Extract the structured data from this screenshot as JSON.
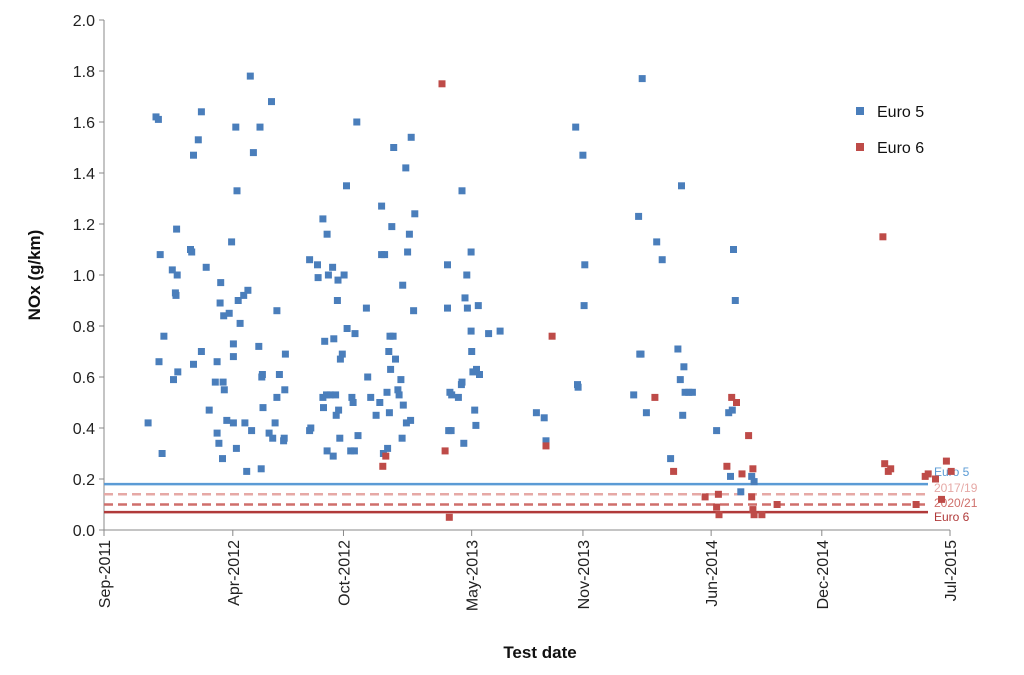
{
  "chart_data": {
    "type": "scatter",
    "xlabel": "Test date",
    "ylabel": "NOx (g/km)",
    "x_ticks": [
      "Sep-2011",
      "Apr-2012",
      "Oct-2012",
      "May-2013",
      "Nov-2013",
      "Jun-2014",
      "Dec-2014",
      "Jul-2015"
    ],
    "x_range": [
      "2011-09-01",
      "2015-07-01"
    ],
    "y_ticks": [
      "0.0",
      "0.2",
      "0.4",
      "0.6",
      "0.8",
      "1.0",
      "1.2",
      "1.4",
      "1.6",
      "1.8",
      "2.0"
    ],
    "ylim": [
      0,
      2.0
    ],
    "grid": false,
    "legend": "top-right",
    "colors": {
      "euro5": "#4a7ebb",
      "euro6": "#be4b48",
      "euro5_line": "#5b9bd5",
      "euro6_line": "#b03a3a",
      "limit_2017": "#e6a9a6",
      "limit_2020": "#cf6f6b"
    },
    "series": [
      {
        "name": "Euro 5",
        "color": "#4a7ebb",
        "points": [
          [
            "2011-11-13",
            0.42
          ],
          [
            "2011-11-26",
            1.62
          ],
          [
            "2011-11-30",
            1.61
          ],
          [
            "2011-12-03",
            1.08
          ],
          [
            "2011-12-06",
            0.3
          ],
          [
            "2011-12-09",
            0.76
          ],
          [
            "2011-12-01",
            0.66
          ],
          [
            "2011-12-23",
            1.02
          ],
          [
            "2011-12-25",
            0.59
          ],
          [
            "2011-12-28",
            0.93
          ],
          [
            "2011-12-29",
            0.92
          ],
          [
            "2011-12-30",
            1.18
          ],
          [
            "2011-12-31",
            1.0
          ],
          [
            "2012-01-01",
            0.62
          ],
          [
            "2012-01-22",
            1.1
          ],
          [
            "2012-01-24",
            1.09
          ],
          [
            "2012-01-27",
            0.65
          ],
          [
            "2012-01-27",
            1.47
          ],
          [
            "2012-02-04",
            1.53
          ],
          [
            "2012-02-09",
            0.7
          ],
          [
            "2012-02-09",
            1.64
          ],
          [
            "2012-02-17",
            1.03
          ],
          [
            "2012-02-22",
            0.47
          ],
          [
            "2012-03-03",
            0.58
          ],
          [
            "2012-03-06",
            0.66
          ],
          [
            "2012-03-06",
            0.38
          ],
          [
            "2012-03-09",
            0.34
          ],
          [
            "2012-03-11",
            0.89
          ],
          [
            "2012-03-12",
            0.97
          ],
          [
            "2012-03-15",
            0.28
          ],
          [
            "2012-03-16",
            0.58
          ],
          [
            "2012-03-18",
            0.55
          ],
          [
            "2012-03-17",
            0.84
          ],
          [
            "2012-03-22",
            0.43
          ],
          [
            "2012-03-26",
            0.85
          ],
          [
            "2012-03-30",
            1.13
          ],
          [
            "2012-04-02",
            0.73
          ],
          [
            "2012-04-02",
            0.68
          ],
          [
            "2012-04-02",
            0.42
          ],
          [
            "2012-04-06",
            1.58
          ],
          [
            "2012-04-07",
            0.32
          ],
          [
            "2012-04-08",
            1.33
          ],
          [
            "2012-04-10",
            0.9
          ],
          [
            "2012-04-13",
            0.81
          ],
          [
            "2012-04-19",
            0.92
          ],
          [
            "2012-04-21",
            0.42
          ],
          [
            "2012-04-24",
            0.23
          ],
          [
            "2012-04-26",
            0.94
          ],
          [
            "2012-04-30",
            1.78
          ],
          [
            "2012-05-02",
            0.39
          ],
          [
            "2012-05-05",
            1.48
          ],
          [
            "2012-05-14",
            0.72
          ],
          [
            "2012-05-16",
            1.58
          ],
          [
            "2012-05-18",
            0.24
          ],
          [
            "2012-05-20",
            0.61
          ],
          [
            "2012-05-19",
            0.6
          ],
          [
            "2012-05-21",
            0.48
          ],
          [
            "2012-05-31",
            0.38
          ],
          [
            "2012-06-04",
            1.68
          ],
          [
            "2012-06-06",
            0.36
          ],
          [
            "2012-06-10",
            0.42
          ],
          [
            "2012-06-13",
            0.86
          ],
          [
            "2012-06-13",
            0.52
          ],
          [
            "2012-06-17",
            0.61
          ],
          [
            "2012-06-25",
            0.36
          ],
          [
            "2012-06-24",
            0.35
          ],
          [
            "2012-06-26",
            0.55
          ],
          [
            "2012-06-27",
            0.69
          ],
          [
            "2012-08-06",
            1.06
          ],
          [
            "2012-08-08",
            0.4
          ],
          [
            "2012-08-06",
            0.39
          ],
          [
            "2012-08-19",
            1.04
          ],
          [
            "2012-08-20",
            0.99
          ],
          [
            "2012-08-28",
            1.22
          ],
          [
            "2012-08-28",
            0.52
          ],
          [
            "2012-08-29",
            0.48
          ],
          [
            "2012-08-31",
            0.74
          ],
          [
            "2012-09-03",
            0.53
          ],
          [
            "2012-09-04",
            0.31
          ],
          [
            "2012-09-04",
            1.16
          ],
          [
            "2012-09-06",
            1.0
          ],
          [
            "2012-09-09",
            0.53
          ],
          [
            "2012-09-13",
            1.03
          ],
          [
            "2012-09-14",
            0.29
          ],
          [
            "2012-09-15",
            0.75
          ],
          [
            "2012-09-18",
            0.53
          ],
          [
            "2012-09-19",
            0.45
          ],
          [
            "2012-09-21",
            0.9
          ],
          [
            "2012-09-22",
            0.98
          ],
          [
            "2012-09-23",
            0.47
          ],
          [
            "2012-09-25",
            0.36
          ],
          [
            "2012-09-26",
            0.67
          ],
          [
            "2012-09-29",
            0.69
          ],
          [
            "2012-10-02",
            1.0
          ],
          [
            "2012-10-06",
            1.35
          ],
          [
            "2012-10-07",
            0.79
          ],
          [
            "2012-10-13",
            0.31
          ],
          [
            "2012-10-15",
            0.52
          ],
          [
            "2012-10-17",
            0.5
          ],
          [
            "2012-10-19",
            0.31
          ],
          [
            "2012-10-20",
            0.77
          ],
          [
            "2012-10-23",
            1.6
          ],
          [
            "2012-10-25",
            0.37
          ],
          [
            "2012-11-08",
            0.87
          ],
          [
            "2012-11-10",
            0.6
          ],
          [
            "2012-11-15",
            0.52
          ],
          [
            "2012-11-24",
            0.45
          ],
          [
            "2012-11-30",
            0.5
          ],
          [
            "2012-12-03",
            1.08
          ],
          [
            "2012-12-03",
            1.27
          ],
          [
            "2012-12-06",
            0.3
          ],
          [
            "2012-12-08",
            1.08
          ],
          [
            "2012-12-12",
            0.54
          ],
          [
            "2012-12-13",
            0.32
          ],
          [
            "2012-12-15",
            0.7
          ],
          [
            "2012-12-16",
            0.46
          ],
          [
            "2012-12-17",
            0.76
          ],
          [
            "2012-12-18",
            0.63
          ],
          [
            "2012-12-20",
            1.19
          ],
          [
            "2012-12-22",
            0.76
          ],
          [
            "2012-12-23",
            1.5
          ],
          [
            "2012-12-26",
            0.67
          ],
          [
            "2012-12-30",
            0.55
          ],
          [
            "2013-01-01",
            0.53
          ],
          [
            "2013-01-04",
            0.59
          ],
          [
            "2013-01-06",
            0.36
          ],
          [
            "2013-01-07",
            0.96
          ],
          [
            "2013-01-08",
            0.49
          ],
          [
            "2013-01-12",
            1.42
          ],
          [
            "2013-01-13",
            0.42
          ],
          [
            "2013-01-15",
            1.09
          ],
          [
            "2013-01-18",
            1.16
          ],
          [
            "2013-01-20",
            0.43
          ],
          [
            "2013-01-21",
            1.54
          ],
          [
            "2013-01-25",
            0.86
          ],
          [
            "2013-01-27",
            1.24
          ],
          [
            "2013-03-22",
            0.87
          ],
          [
            "2013-03-22",
            1.04
          ],
          [
            "2013-03-24",
            0.39
          ],
          [
            "2013-03-26",
            0.54
          ],
          [
            "2013-03-29",
            0.53
          ],
          [
            "2013-03-28",
            0.39
          ],
          [
            "2013-04-09",
            0.52
          ],
          [
            "2013-04-14",
            0.57
          ],
          [
            "2013-04-15",
            0.58
          ],
          [
            "2013-04-15",
            1.33
          ],
          [
            "2013-04-18",
            0.34
          ],
          [
            "2013-04-20",
            0.91
          ],
          [
            "2013-04-23",
            1.0
          ],
          [
            "2013-04-24",
            0.87
          ],
          [
            "2013-04-30",
            1.09
          ],
          [
            "2013-04-30",
            0.78
          ],
          [
            "2013-05-01",
            0.7
          ],
          [
            "2013-05-03",
            0.62
          ],
          [
            "2013-05-06",
            0.47
          ],
          [
            "2013-05-08",
            0.41
          ],
          [
            "2013-05-09",
            0.63
          ],
          [
            "2013-05-12",
            0.88
          ],
          [
            "2013-05-14",
            0.61
          ],
          [
            "2013-05-29",
            0.77
          ],
          [
            "2013-06-17",
            0.78
          ],
          [
            "2013-08-16",
            0.46
          ],
          [
            "2013-08-29",
            0.44
          ],
          [
            "2013-09-01",
            0.35
          ],
          [
            "2013-10-20",
            1.58
          ],
          [
            "2013-10-23",
            0.57
          ],
          [
            "2013-10-24",
            0.56
          ],
          [
            "2013-11-01",
            1.47
          ],
          [
            "2013-11-03",
            0.88
          ],
          [
            "2013-11-04",
            1.04
          ],
          [
            "2014-01-24",
            0.53
          ],
          [
            "2014-02-01",
            1.23
          ],
          [
            "2014-02-03",
            0.69
          ],
          [
            "2014-02-05",
            0.69
          ],
          [
            "2014-02-07",
            1.77
          ],
          [
            "2014-02-14",
            0.46
          ],
          [
            "2014-03-03",
            1.13
          ],
          [
            "2014-03-12",
            1.06
          ],
          [
            "2014-03-26",
            0.28
          ],
          [
            "2014-04-07",
            0.71
          ],
          [
            "2014-04-11",
            0.59
          ],
          [
            "2014-04-13",
            1.35
          ],
          [
            "2014-04-15",
            0.45
          ],
          [
            "2014-04-17",
            0.64
          ],
          [
            "2014-04-19",
            0.54
          ],
          [
            "2014-04-25",
            0.54
          ],
          [
            "2014-05-01",
            0.54
          ],
          [
            "2014-06-10",
            0.39
          ],
          [
            "2014-06-30",
            0.46
          ],
          [
            "2014-07-03",
            0.21
          ],
          [
            "2014-07-06",
            0.47
          ],
          [
            "2014-07-08",
            1.1
          ],
          [
            "2014-07-11",
            0.9
          ],
          [
            "2014-07-20",
            0.15
          ],
          [
            "2014-08-07",
            0.21
          ],
          [
            "2014-08-11",
            0.19
          ]
        ]
      },
      {
        "name": "Euro 6",
        "color": "#be4b48",
        "points": [
          [
            "2012-12-05",
            0.25
          ],
          [
            "2012-12-10",
            0.29
          ],
          [
            "2013-03-13",
            1.75
          ],
          [
            "2013-03-18",
            0.31
          ],
          [
            "2013-03-25",
            0.05
          ],
          [
            "2013-09-01",
            0.33
          ],
          [
            "2013-09-11",
            0.76
          ],
          [
            "2014-02-28",
            0.52
          ],
          [
            "2014-03-31",
            0.23
          ],
          [
            "2014-05-22",
            0.13
          ],
          [
            "2014-06-10",
            0.09
          ],
          [
            "2014-06-14",
            0.06
          ],
          [
            "2014-06-13",
            0.14
          ],
          [
            "2014-06-27",
            0.25
          ],
          [
            "2014-07-05",
            0.52
          ],
          [
            "2014-07-13",
            0.5
          ],
          [
            "2014-07-22",
            0.22
          ],
          [
            "2014-08-02",
            0.37
          ],
          [
            "2014-08-07",
            0.13
          ],
          [
            "2014-08-09",
            0.24
          ],
          [
            "2014-08-09",
            0.08
          ],
          [
            "2014-08-11",
            0.06
          ],
          [
            "2014-08-24",
            0.06
          ],
          [
            "2014-09-18",
            0.1
          ],
          [
            "2015-03-12",
            1.15
          ],
          [
            "2015-03-15",
            0.26
          ],
          [
            "2015-03-21",
            0.23
          ],
          [
            "2015-03-25",
            0.24
          ],
          [
            "2015-05-06",
            0.1
          ],
          [
            "2015-05-21",
            0.21
          ],
          [
            "2015-05-26",
            0.22
          ],
          [
            "2015-06-07",
            0.2
          ],
          [
            "2015-06-17",
            0.12
          ],
          [
            "2015-06-25",
            0.27
          ],
          [
            "2015-07-03",
            0.23
          ]
        ]
      }
    ],
    "limits": [
      {
        "label": "Euro 5",
        "value": 0.18,
        "color": "#5b9bd5",
        "style": "solid"
      },
      {
        "label": "2017/19",
        "value": 0.14,
        "color": "#e6a9a6",
        "style": "dashed"
      },
      {
        "label": "2020/21",
        "value": 0.1,
        "color": "#cf6f6b",
        "style": "dashed"
      },
      {
        "label": "Euro 6",
        "value": 0.07,
        "color": "#b03a3a",
        "style": "solid"
      }
    ]
  }
}
